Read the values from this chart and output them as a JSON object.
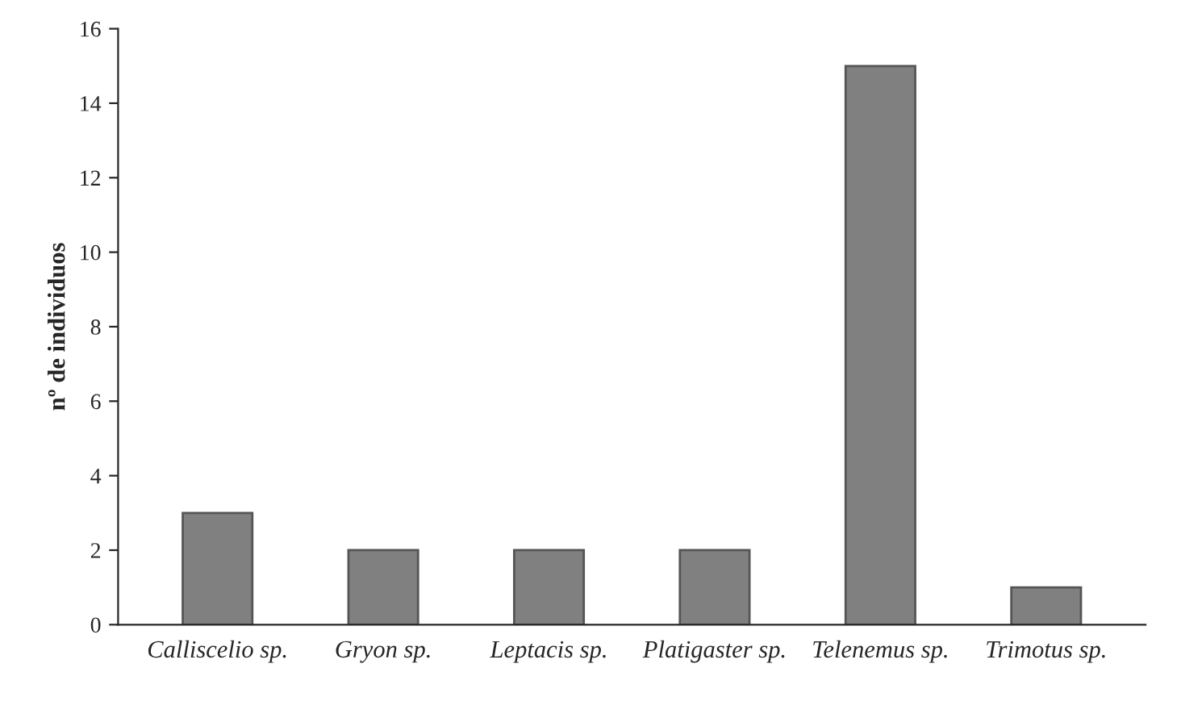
{
  "chart_data": {
    "type": "bar",
    "ylabel": "nº de individuos",
    "categories": [
      "Calliscelio sp.",
      "Gryon sp.",
      "Leptacis sp.",
      "Platigaster sp.",
      "Telenemus sp.",
      "Trimotus sp."
    ],
    "values": [
      3,
      2,
      2,
      2,
      15,
      1
    ],
    "color": "#808080",
    "ylim": [
      0,
      16
    ],
    "yticks": [
      0,
      2,
      4,
      6,
      8,
      10,
      12,
      14,
      16
    ],
    "grid": false,
    "legend": false
  }
}
